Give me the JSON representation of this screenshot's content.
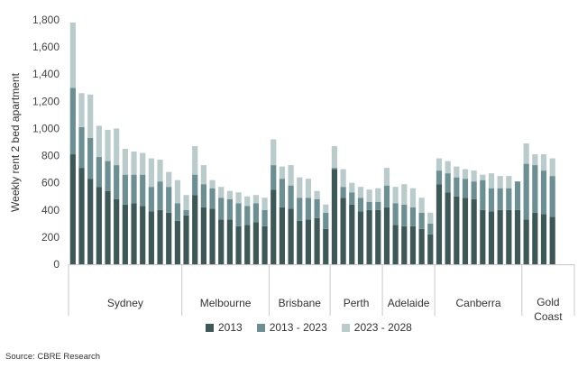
{
  "source": "Source: CBRE Research",
  "chart_data": {
    "type": "bar",
    "stacked": true,
    "ylabel": "Weekly rent 2 bed apartment",
    "ylim": [
      0,
      1800
    ],
    "yticks": [
      "0",
      "200",
      "400",
      "600",
      "800",
      "1,000",
      "1,200",
      "1,400",
      "1,600",
      "1,800"
    ],
    "grid": false,
    "legend_position": "bottom",
    "groups": [
      {
        "name": "Sydney",
        "bars": 13
      },
      {
        "name": "Melbourne",
        "bars": 10
      },
      {
        "name": "Brisbane",
        "bars": 7
      },
      {
        "name": "Perth",
        "bars": 6
      },
      {
        "name": "Adelaide",
        "bars": 6
      },
      {
        "name": "Canberra",
        "bars": 10
      },
      {
        "name": "Gold\nCoast",
        "bars": 4
      }
    ],
    "series": [
      {
        "name": "2013",
        "color": "#3d5856",
        "values": [
          810,
          710,
          630,
          570,
          540,
          480,
          440,
          450,
          430,
          390,
          400,
          380,
          320,
          360,
          510,
          420,
          410,
          330,
          330,
          280,
          290,
          310,
          280,
          550,
          420,
          410,
          320,
          330,
          340,
          260,
          700,
          490,
          440,
          390,
          400,
          400,
          420,
          290,
          280,
          280,
          260,
          220,
          590,
          530,
          500,
          490,
          480,
          400,
          390,
          400,
          400,
          400,
          330,
          380,
          370,
          350
        ]
      },
      {
        "name": "2013 - 2023",
        "color": "#6b8f92",
        "values": [
          490,
          300,
          300,
          220,
          220,
          250,
          220,
          210,
          230,
          180,
          210,
          190,
          130,
          40,
          150,
          170,
          150,
          160,
          150,
          170,
          140,
          140,
          120,
          180,
          210,
          170,
          170,
          160,
          140,
          120,
          10,
          80,
          90,
          100,
          60,
          60,
          160,
          160,
          160,
          140,
          120,
          80,
          100,
          140,
          140,
          140,
          130,
          220,
          170,
          160,
          160,
          210,
          410,
          350,
          320,
          300
        ]
      },
      {
        "name": "2023 - 2028",
        "color": "#b9cbcb",
        "values": [
          480,
          250,
          320,
          230,
          230,
          270,
          190,
          170,
          160,
          210,
          160,
          110,
          170,
          110,
          210,
          140,
          60,
          80,
          60,
          80,
          70,
          60,
          90,
          190,
          90,
          150,
          150,
          140,
          60,
          60,
          160,
          130,
          70,
          80,
          90,
          100,
          130,
          120,
          150,
          140,
          110,
          80,
          90,
          90,
          80,
          70,
          80,
          40,
          110,
          90,
          90,
          0,
          150,
          80,
          120,
          130
        ]
      }
    ]
  }
}
